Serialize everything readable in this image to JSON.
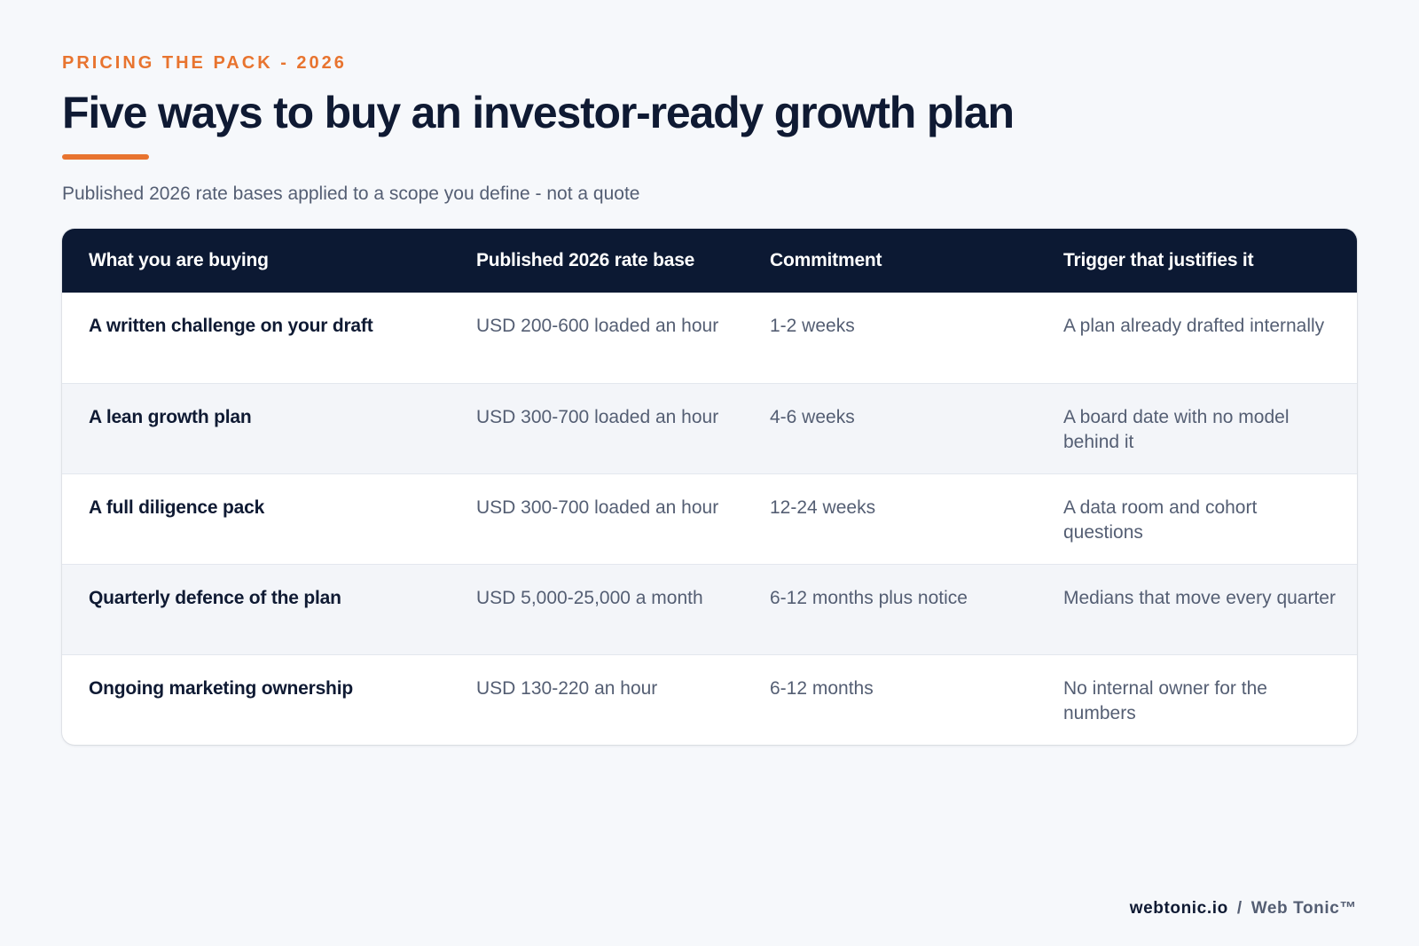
{
  "header": {
    "eyebrow": "PRICING THE PACK - 2026",
    "title": "Five ways to buy an investor-ready growth plan",
    "subtitle": "Published 2026 rate bases applied to a scope you define - not a quote"
  },
  "table": {
    "columns": [
      "What you are buying",
      "Published 2026 rate base",
      "Commitment",
      "Trigger that justifies it"
    ],
    "rows": [
      {
        "buying": "A written challenge on your draft",
        "rate": "USD 200-600 loaded an hour",
        "commitment": "1-2 weeks",
        "trigger": "A plan already drafted internally"
      },
      {
        "buying": "A lean growth plan",
        "rate": "USD 300-700 loaded an hour",
        "commitment": "4-6 weeks",
        "trigger": "A board date with no model behind it"
      },
      {
        "buying": "A full diligence pack",
        "rate": "USD 300-700 loaded an hour",
        "commitment": "12-24 weeks",
        "trigger": "A data room and cohort questions"
      },
      {
        "buying": "Quarterly defence of the plan",
        "rate": "USD 5,000-25,000 a month",
        "commitment": "6-12 months plus notice",
        "trigger": "Medians that move every quarter"
      },
      {
        "buying": "Ongoing marketing ownership",
        "rate": "USD 130-220 an hour",
        "commitment": "6-12 months",
        "trigger": "No internal owner for the numbers"
      }
    ]
  },
  "footer": {
    "domain": "webtonic.io",
    "separator": "/",
    "brand": "Web Tonic™"
  },
  "colors": {
    "accent": "#e8742f",
    "header_bg": "#0c1933",
    "page_bg": "#f6f8fb"
  }
}
